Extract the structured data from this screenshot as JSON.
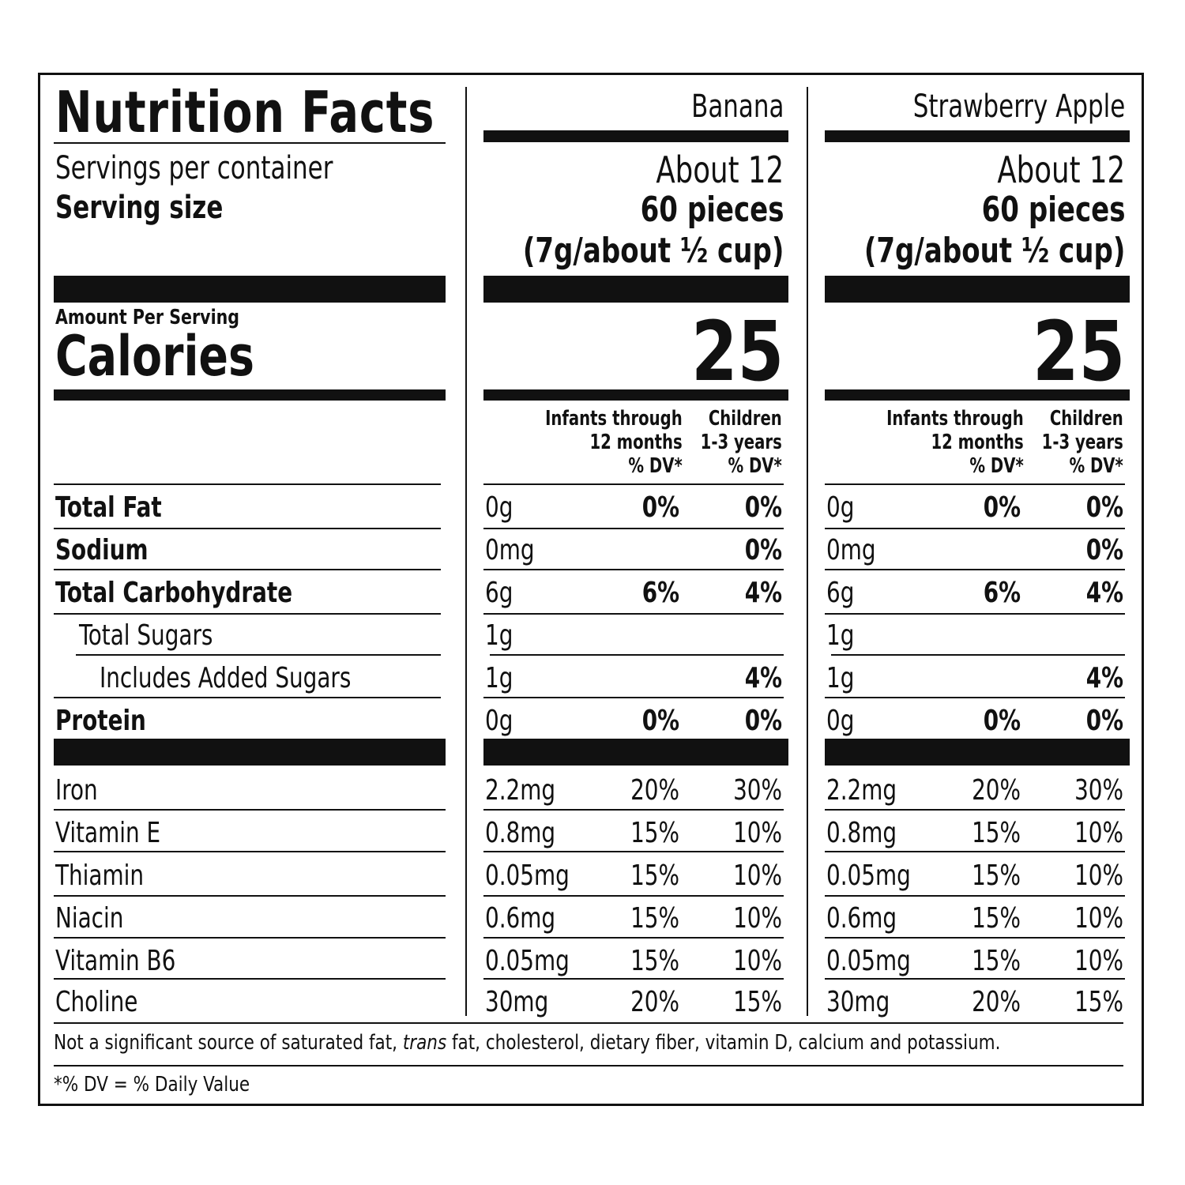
{
  "title": "Nutrition Facts",
  "servings_label": "Servings per container",
  "serving_size_label": "Serving size",
  "amount_per_serving": "Amount Per Serving",
  "calories_label": "Calories",
  "columns": [
    {
      "name": "Banana",
      "servings": "About 12",
      "serving_size": "60 pieces",
      "serving_size_detail": "(7g/about ½ cup)",
      "calories": "25",
      "dv_infants": "Infants through 12 months % DV*",
      "dv_children": "Children 1-3 years % DV*"
    },
    {
      "name": "Strawberry Apple",
      "servings": "About 12",
      "serving_size": "60 pieces",
      "serving_size_detail": "(7g/about ½ cup)",
      "calories": "25",
      "dv_infants": "Infants through 12 months % DV*",
      "dv_children": "Children 1-3 years % DV*"
    }
  ],
  "dv_header": {
    "infants_line1": "Infants through",
    "infants_line2": "12 months",
    "infants_line3": "% DV*",
    "children_line1": "Children",
    "children_line2": "1-3 years",
    "children_line3": "% DV*"
  },
  "nutrients": [
    {
      "label": "Total Fat",
      "bold": true,
      "indent": 0,
      "amount": "0g",
      "infant": "0%",
      "child": "0%"
    },
    {
      "label": "Sodium",
      "bold": true,
      "indent": 0,
      "amount": "0mg",
      "infant": "",
      "child": "0%"
    },
    {
      "label": "Total Carbohydrate",
      "bold": true,
      "indent": 0,
      "amount": "6g",
      "infant": "6%",
      "child": "4%"
    },
    {
      "label": "Total Sugars",
      "bold": false,
      "indent": 1,
      "amount": "1g",
      "infant": "",
      "child": ""
    },
    {
      "label": "Includes Added Sugars",
      "bold": false,
      "indent": 2,
      "amount": "1g",
      "infant": "",
      "child": "4%"
    },
    {
      "label": "Protein",
      "bold": true,
      "indent": 0,
      "amount": "0g",
      "infant": "0%",
      "child": "0%"
    }
  ],
  "vitamins": [
    {
      "label": "Iron",
      "amount": "2.2mg",
      "infant": "20%",
      "child": "30%"
    },
    {
      "label": "Vitamin E",
      "amount": "0.8mg",
      "infant": "15%",
      "child": "10%"
    },
    {
      "label": "Thiamin",
      "amount": "0.05mg",
      "infant": "15%",
      "child": "10%"
    },
    {
      "label": "Niacin",
      "amount": "0.6mg",
      "infant": "15%",
      "child": "10%"
    },
    {
      "label": "Vitamin B6",
      "amount": "0.05mg",
      "infant": "15%",
      "child": "10%"
    },
    {
      "label": "Choline",
      "amount": "30mg",
      "infant": "20%",
      "child": "15%"
    }
  ],
  "footnote": {
    "part1": "Not a significant source of saturated fat, ",
    "trans": "trans",
    "part2": " fat, cholesterol, dietary fiber, vitamin D, calcium and potassium."
  },
  "dv_note": "*% DV = % Daily Value"
}
